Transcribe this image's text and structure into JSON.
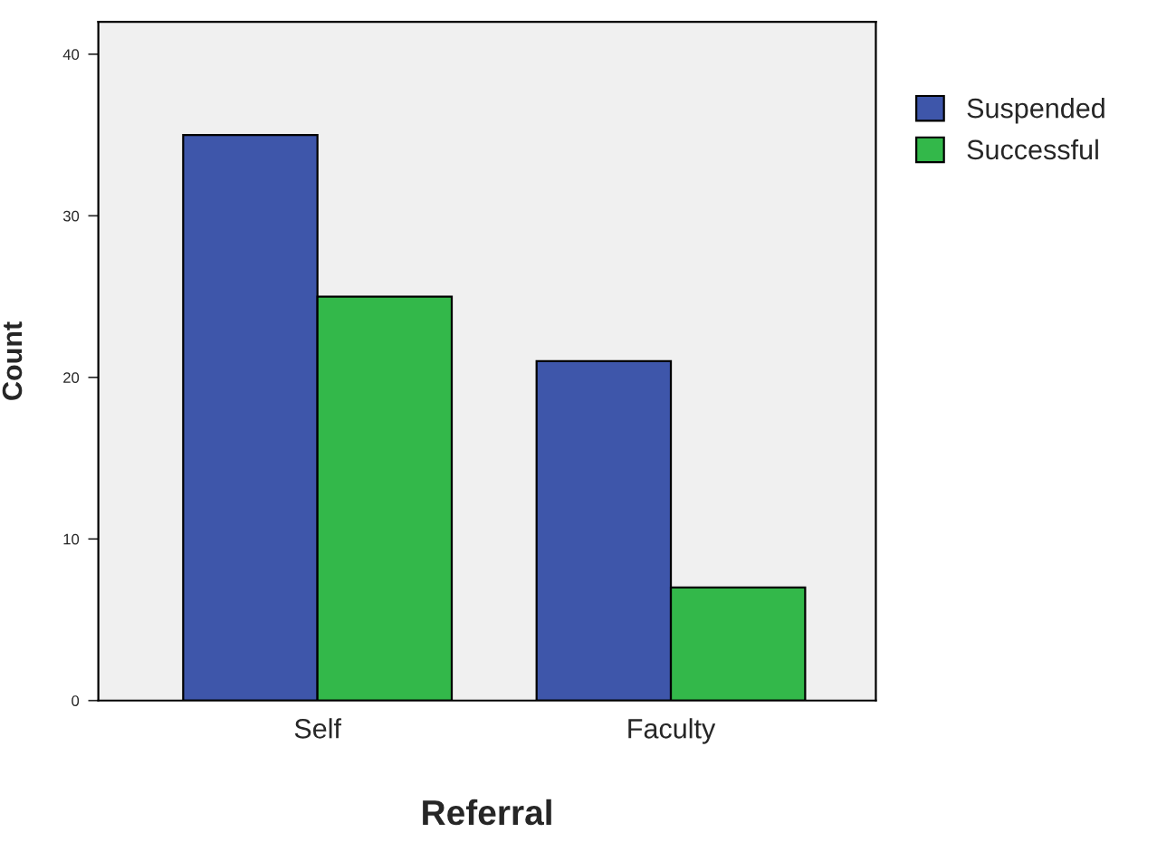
{
  "chart_data": {
    "type": "bar",
    "xlabel": "Referral",
    "ylabel": "Count",
    "categories": [
      "Self",
      "Faculty"
    ],
    "series": [
      {
        "name": "Suspended",
        "color": "#3e56aa",
        "values": [
          35,
          21
        ]
      },
      {
        "name": "Successful",
        "color": "#33b84a",
        "values": [
          25,
          7
        ]
      }
    ],
    "ylim": [
      0,
      42
    ],
    "yticks": [
      0,
      10,
      20,
      30,
      40
    ],
    "grid": false,
    "legend": "right"
  }
}
